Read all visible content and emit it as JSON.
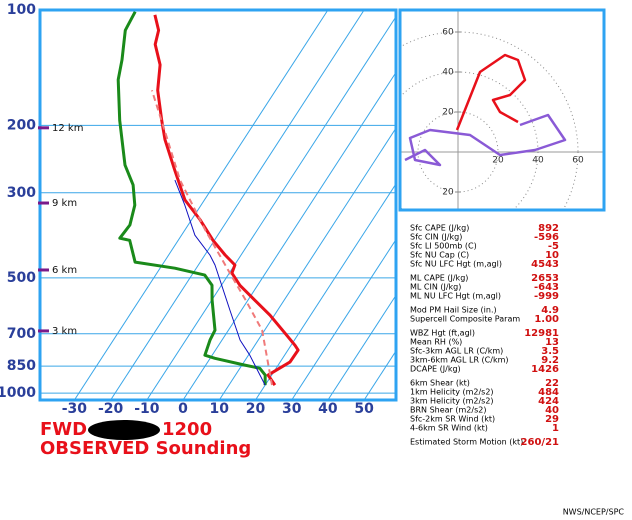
{
  "chart_data": [
    {
      "type": "skewt",
      "xlim": [
        -39.5,
        58.8
      ],
      "xticks": [
        -30,
        -20,
        -10,
        0,
        10,
        20,
        30,
        40,
        50
      ],
      "ylim": [
        100,
        1042
      ],
      "yticks": [
        100,
        200,
        300,
        500,
        700,
        850,
        1000
      ],
      "log_y": true,
      "grid": true,
      "height_markers": [
        {
          "pressure": 203,
          "label": "12 km"
        },
        {
          "pressure": 319,
          "label": "9 km"
        },
        {
          "pressure": 477,
          "label": "6 km"
        },
        {
          "pressure": 688,
          "label": "3 km"
        }
      ],
      "series": [
        {
          "color": "#e8101a",
          "width": 3,
          "pressure": [
            953,
            897,
            830,
            772,
            750,
            697,
            626,
            572,
            523,
            486,
            463,
            436,
            399,
            353,
            313,
            262,
            218,
            194,
            162,
            139,
            123,
            113,
            103
          ],
          "values": [
            22.7,
            19.0,
            22.7,
            22.8,
            21.1,
            16.1,
            8.8,
            1.9,
            -4.9,
            -9.3,
            -9.9,
            -14.4,
            -20.4,
            -27.6,
            -35.4,
            -43.5,
            -51.7,
            -56.1,
            -62.6,
            -66.5,
            -71.5,
            -73.1,
            -76.9
          ]
        },
        {
          "color": "#1a8a1a",
          "width": 3,
          "pressure": [
            953,
            897,
            861,
            845,
            811,
            796,
            727,
            685,
            572,
            523,
            492,
            472,
            455,
            399,
            394,
            364,
            323,
            286,
            254,
            194,
            152,
            135,
            113,
            101
          ],
          "values": [
            20.0,
            18.2,
            15.5,
            10.8,
            1.3,
            -2.0,
            -3.3,
            -3.7,
            -9.9,
            -12.6,
            -16.4,
            -25.9,
            -38.0,
            -43.4,
            -46.5,
            -46.1,
            -48.3,
            -52.4,
            -58.2,
            -67.7,
            -75.4,
            -77.9,
            -82.3,
            -82.9
          ]
        },
        {
          "color": "#f07a7a",
          "width": 2,
          "dash": true,
          "pressure": [
            953,
            685,
            572,
            477,
            375,
            278,
            206,
            162
          ],
          "values": [
            21.9,
            9.3,
            -0.6,
            -10.9,
            -24.4,
            -40.3,
            -53.5,
            -64.2
          ]
        },
        {
          "color": "#1010c0",
          "width": 1,
          "pressure": [
            953,
            796,
            727,
            607,
            463,
            436,
            387,
            323,
            278
          ],
          "values": [
            20.0,
            10.4,
            5.0,
            -3.2,
            -15.4,
            -18.6,
            -26.3,
            -34.5,
            -41.7
          ]
        }
      ]
    },
    {
      "type": "hodograph",
      "xlim": [
        -29,
        73
      ],
      "ylim": [
        -29,
        71
      ],
      "xticks": [
        20,
        40,
        60
      ],
      "yticks": [
        {
          "value": -20,
          "label": "20"
        },
        20,
        40,
        60
      ],
      "series": [
        {
          "color": "#e8101a",
          "x": [
            -0.5,
            11,
            23.5,
            30,
            33.5,
            26,
            17.5,
            21,
            30
          ],
          "y": [
            11,
            40,
            48.5,
            46,
            36,
            28.5,
            26,
            20,
            15
          ]
        },
        {
          "color": "#8a5ad6",
          "x": [
            31,
            45,
            53.5,
            38.5,
            21,
            6,
            -14,
            -24,
            -21.5,
            -9,
            -16.5,
            -26.5
          ],
          "y": [
            13.5,
            18.5,
            6,
            1,
            -1.5,
            8.5,
            11,
            7,
            -4,
            -6.5,
            1,
            -4
          ]
        }
      ]
    }
  ],
  "title": "FWD -",
  "time": "1200",
  "subtitle": "OBSERVED Sounding",
  "parameters": [
    [
      {
        "label": "Sfc CAPE (J/kg)",
        "value": "892"
      },
      {
        "label": "Sfc CIN (J/kg)",
        "value": "-596"
      },
      {
        "label": "Sfc LI 500mb (C)",
        "value": "-5"
      },
      {
        "label": "Sfc NU Cap (C)",
        "value": "10"
      },
      {
        "label": "Sfc NU LFC Hgt (m,agl)",
        "value": "4543"
      }
    ],
    [
      {
        "label": "ML CAPE (J/kg)",
        "value": "2653"
      },
      {
        "label": "ML CIN (J/kg)",
        "value": "-643"
      },
      {
        "label": "ML NU LFC Hgt (m,agl)",
        "value": "-999"
      }
    ],
    [
      {
        "label": "Mod PM Hail Size (in.)",
        "value": "4.9"
      },
      {
        "label": "Supercell Composite Param",
        "value": "1.00"
      }
    ],
    [
      {
        "label": "WBZ Hgt (ft,agl)",
        "value": "12981"
      },
      {
        "label": "Mean RH (%)",
        "value": "13"
      },
      {
        "label": "Sfc-3km AGL LR (C/km)",
        "value": "3.5"
      },
      {
        "label": "3km-6km AGL LR (C/km)",
        "value": "9.2"
      },
      {
        "label": "DCAPE (J/kg)",
        "value": "1426"
      }
    ],
    [
      {
        "label": "6km Shear (kt)",
        "value": "22"
      },
      {
        "label": "1km Helicity (m2/s2)",
        "value": "484"
      },
      {
        "label": "3km Helicity (m2/s2)",
        "value": "424"
      },
      {
        "label": "BRN Shear (m2/s2)",
        "value": "40"
      },
      {
        "label": "Sfc-2km SR Wind (kt)",
        "value": "29"
      },
      {
        "label": "4-6km SR Wind (kt)",
        "value": "1"
      }
    ],
    [
      {
        "label": "Estimated Storm Motion (kt)",
        "value": "260/21"
      }
    ]
  ],
  "credit": "NWS/NCEP/SPC"
}
